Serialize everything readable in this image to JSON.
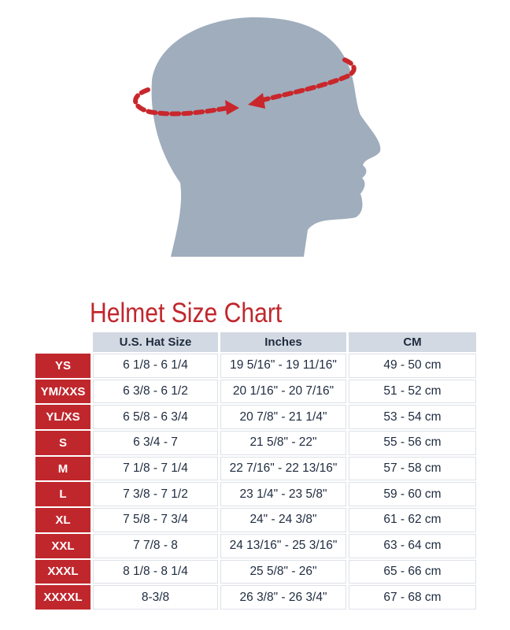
{
  "title": "Helmet Size Chart",
  "colors": {
    "accent": "#c0272d",
    "head": "#9fadbd",
    "header_bg": "#d3d9e2",
    "text": "#1e2b3f"
  },
  "illustration": {
    "subject": "head-profile-icon",
    "measure": "dashed-circumference-arrow-icon"
  },
  "columns": [
    "",
    "U.S. Hat Size",
    "Inches",
    "CM"
  ],
  "rows": [
    {
      "size": "YS",
      "hat": "6 1/8 - 6 1/4",
      "inches": "19 5/16\" - 19 11/16\"",
      "cm": "49 - 50 cm"
    },
    {
      "size": "YM/XXS",
      "hat": "6 3/8 - 6 1/2",
      "inches": "20 1/16\" - 20 7/16\"",
      "cm": "51 - 52 cm"
    },
    {
      "size": "YL/XS",
      "hat": "6 5/8 - 6 3/4",
      "inches": "20 7/8\" - 21 1/4\"",
      "cm": "53 - 54 cm"
    },
    {
      "size": "S",
      "hat": "6 3/4 - 7",
      "inches": "21 5/8\" - 22\"",
      "cm": "55 - 56 cm"
    },
    {
      "size": "M",
      "hat": "7 1/8 - 7 1/4",
      "inches": "22 7/16\" - 22 13/16\"",
      "cm": "57 - 58 cm"
    },
    {
      "size": "L",
      "hat": "7 3/8 - 7 1/2",
      "inches": "23 1/4\" - 23 5/8\"",
      "cm": "59 - 60 cm"
    },
    {
      "size": "XL",
      "hat": "7 5/8 - 7 3/4",
      "inches": "24\" - 24 3/8\"",
      "cm": "61 - 62 cm"
    },
    {
      "size": "XXL",
      "hat": "7 7/8 - 8",
      "inches": "24 13/16\" - 25 3/16\"",
      "cm": "63 - 64 cm"
    },
    {
      "size": "XXXL",
      "hat": "8 1/8 - 8 1/4",
      "inches": "25 5/8\" - 26\"",
      "cm": "65 - 66 cm"
    },
    {
      "size": "XXXXL",
      "hat": "8-3/8",
      "inches": "26 3/8\" - 26 3/4\"",
      "cm": "67 - 68 cm"
    }
  ]
}
